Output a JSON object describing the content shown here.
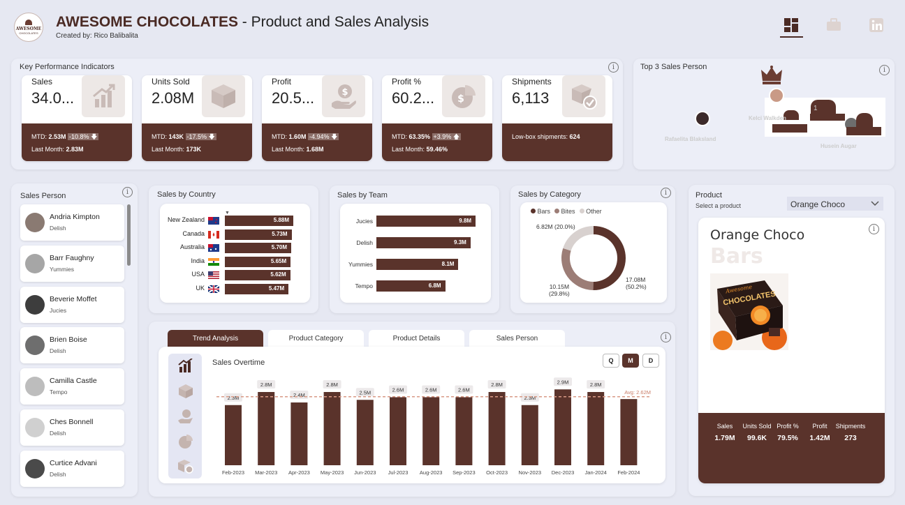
{
  "header": {
    "brand": "AWESOME CHOCOLATES",
    "title_rest": " - Product and Sales Analysis",
    "created_by": "Created by: Rico Balibalita",
    "logo_top": "AWESOME",
    "logo_bottom": "CHOCOLATES"
  },
  "kpi_panel": {
    "title": "Key Performance Indicators",
    "cards": [
      {
        "label": "Sales",
        "value": "34.0...",
        "mtd_label": "MTD: ",
        "mtd": "2.53M",
        "change": "-10.8%",
        "arrow": "🡇",
        "last_label": "Last Month: ",
        "last": "2.83M",
        "icon": "growth-chart-icon"
      },
      {
        "label": "Units Sold",
        "value": "2.08M",
        "mtd_label": "MTD: ",
        "mtd": "143K",
        "change": "-17.5%",
        "arrow": "🡇",
        "last_label": "Last Month: ",
        "last": "173K",
        "icon": "box-icon"
      },
      {
        "label": "Profit",
        "value": "20.5...",
        "mtd_label": "MTD: ",
        "mtd": "1.60M",
        "change": "-4.94%",
        "arrow": "🡇",
        "last_label": "Last Month: ",
        "last": "1.68M",
        "icon": "money-hand-icon"
      },
      {
        "label": "Profit %",
        "value": "60.2...",
        "mtd_label": "MTD: ",
        "mtd": "63.35%",
        "change": "+3.9%",
        "arrow": "🡅",
        "last_label": "Last Month: ",
        "last": "59.46%",
        "icon": "pie-dollar-icon"
      },
      {
        "label": "Shipments",
        "value": "6,113",
        "note_label": "Low-box shipments: ",
        "note": "624",
        "icon": "package-check-icon"
      }
    ]
  },
  "top3": {
    "title": "Top 3 Sales Person",
    "first": "Kelci Walkden",
    "second": "Rafaelita Blaksland",
    "third": "Husein Augar",
    "rank1": "1"
  },
  "salesperson": {
    "title": "Sales Person",
    "items": [
      {
        "name": "Andria Kimpton",
        "team": "Delish"
      },
      {
        "name": "Barr Faughny",
        "team": "Yummies"
      },
      {
        "name": "Beverie Moffet",
        "team": "Jucies"
      },
      {
        "name": "Brien Boise",
        "team": "Delish"
      },
      {
        "name": "Camilla Castle",
        "team": "Tempo"
      },
      {
        "name": "Ches Bonnell",
        "team": "Delish"
      },
      {
        "name": "Curtice Advani",
        "team": "Delish"
      }
    ]
  },
  "country": {
    "title": "Sales by Country",
    "rows": [
      {
        "name": "New Zealand",
        "label": "5.88M",
        "value": 5.88
      },
      {
        "name": "Canada",
        "label": "5.73M",
        "value": 5.73
      },
      {
        "name": "Australia",
        "label": "5.70M",
        "value": 5.7
      },
      {
        "name": "India",
        "label": "5.65M",
        "value": 5.65
      },
      {
        "name": "USA",
        "label": "5.62M",
        "value": 5.62
      },
      {
        "name": "UK",
        "label": "5.47M",
        "value": 5.47
      }
    ]
  },
  "team": {
    "title": "Sales by Team",
    "rows": [
      {
        "name": "Jucies",
        "label": "9.8M",
        "value": 9.8
      },
      {
        "name": "Delish",
        "label": "9.3M",
        "value": 9.3
      },
      {
        "name": "Yummies",
        "label": "8.1M",
        "value": 8.1
      },
      {
        "name": "Tempo",
        "label": "6.8M",
        "value": 6.8
      }
    ]
  },
  "category": {
    "title": "Sales by Category",
    "legend": [
      "Bars",
      "Bites",
      "Other"
    ],
    "colors": [
      "#5a332b",
      "#9c7d76",
      "#d8d1cf"
    ],
    "values": [
      17.08,
      10.15,
      6.82
    ],
    "label_bars_1": "17.08M",
    "label_bars_2": "(50.2%)",
    "label_bites_1": "10.15M",
    "label_bites_2": "(29.8%)",
    "label_other": "6.82M (20.0%)"
  },
  "product": {
    "title": "Product",
    "subtitle": "Select a product",
    "selected": "Orange Choco",
    "name": "Orange Choco",
    "category": "Bars",
    "box_brand": "Awesome",
    "box_name": "CHOCOLATES",
    "stats": [
      {
        "label": "Sales",
        "value": "1.79M"
      },
      {
        "label": "Units Sold",
        "value": "99.6K"
      },
      {
        "label": "Profit %",
        "value": "79.5%"
      },
      {
        "label": "Profit",
        "value": "1.42M"
      },
      {
        "label": "Shipments",
        "value": "273"
      }
    ]
  },
  "tabs": [
    "Trend Analysis",
    "Product Category",
    "Product Details",
    "Sales Person"
  ],
  "trend": {
    "title": "Sales Overtime",
    "granularity": [
      "Q",
      "M",
      "D"
    ],
    "avg_label": "Avg: 2.62M"
  },
  "chart_data": {
    "type": "bar",
    "title": "Sales Overtime",
    "categories": [
      "Feb-2023",
      "Mar-2023",
      "Apr-2023",
      "May-2023",
      "Jun-2023",
      "Jul-2023",
      "Aug-2023",
      "Sep-2023",
      "Oct-2023",
      "Nov-2023",
      "Dec-2023",
      "Jan-2024",
      "Feb-2024"
    ],
    "values": [
      2.3,
      2.8,
      2.4,
      2.8,
      2.5,
      2.6,
      2.6,
      2.6,
      2.8,
      2.3,
      2.9,
      2.8,
      2.53
    ],
    "labels": [
      "2.3M",
      "2.8M",
      "2.4M",
      "2.8M",
      "2.5M",
      "2.6M",
      "2.6M",
      "2.6M",
      "2.8M",
      "2.3M",
      "2.9M",
      "2.8M",
      ""
    ],
    "average": 2.62,
    "ylim": [
      0,
      3.2
    ],
    "color": "#5a332b"
  }
}
